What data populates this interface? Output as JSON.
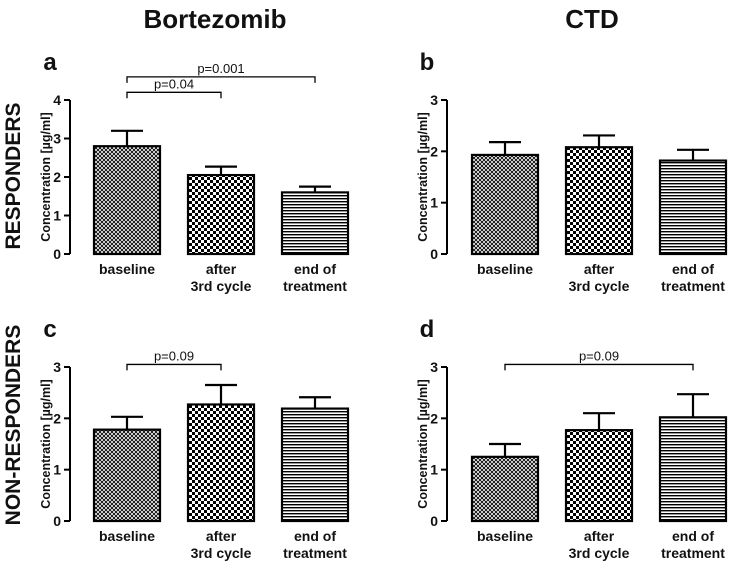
{
  "column_titles": [
    "Bortezomib",
    "CTD"
  ],
  "row_titles": [
    "RESPONDERS",
    "NON-RESPONDERS"
  ],
  "chart_data": [
    {
      "type": "bar",
      "panel_label": "a",
      "ylabel": "Concentration [µg/ml]",
      "ylim": [
        0,
        4
      ],
      "yticks": [
        0,
        1,
        2,
        3,
        4
      ],
      "categories": [
        [
          "baseline"
        ],
        [
          "after",
          "3rd cycle"
        ],
        [
          "end of",
          "treatment"
        ]
      ],
      "values": [
        2.8,
        2.05,
        1.6
      ],
      "errors": [
        0.4,
        0.22,
        0.15
      ],
      "patterns": [
        "crosshatch",
        "checker",
        "stripes"
      ],
      "comparisons": [
        {
          "from": 0,
          "to": 1,
          "label": "p=0.04",
          "level": 4.2
        },
        {
          "from": 0,
          "to": 2,
          "label": "p=0.001",
          "level": 4.6
        }
      ]
    },
    {
      "type": "bar",
      "panel_label": "b",
      "ylabel": "Concentration [µg/ml]",
      "ylim": [
        0,
        3
      ],
      "yticks": [
        0,
        1,
        2,
        3
      ],
      "categories": [
        [
          "baseline"
        ],
        [
          "after",
          "3rd cycle"
        ],
        [
          "end of",
          "treatment"
        ]
      ],
      "values": [
        1.93,
        2.08,
        1.82
      ],
      "errors": [
        0.25,
        0.23,
        0.21
      ],
      "patterns": [
        "crosshatch",
        "checker",
        "stripes"
      ],
      "comparisons": []
    },
    {
      "type": "bar",
      "panel_label": "c",
      "ylabel": "Concentration [µg/ml]",
      "ylim": [
        0,
        3
      ],
      "yticks": [
        0,
        1,
        2,
        3
      ],
      "categories": [
        [
          "baseline"
        ],
        [
          "after",
          "3rd cycle"
        ],
        [
          "end of",
          "treatment"
        ]
      ],
      "values": [
        1.78,
        2.27,
        2.19
      ],
      "errors": [
        0.25,
        0.38,
        0.22
      ],
      "patterns": [
        "crosshatch",
        "checker",
        "stripes"
      ],
      "comparisons": [
        {
          "from": 0,
          "to": 1,
          "label": "p=0.09",
          "level": 3.05
        }
      ]
    },
    {
      "type": "bar",
      "panel_label": "d",
      "ylabel": "Concentration [µg/ml]",
      "ylim": [
        0,
        3
      ],
      "yticks": [
        0,
        1,
        2,
        3
      ],
      "categories": [
        [
          "baseline"
        ],
        [
          "after",
          "3rd cycle"
        ],
        [
          "end of",
          "treatment"
        ]
      ],
      "values": [
        1.25,
        1.77,
        2.02
      ],
      "errors": [
        0.25,
        0.33,
        0.45
      ],
      "patterns": [
        "crosshatch",
        "checker",
        "stripes"
      ],
      "comparisons": [
        {
          "from": 0,
          "to": 2,
          "label": "p=0.09",
          "level": 3.05
        }
      ]
    }
  ]
}
